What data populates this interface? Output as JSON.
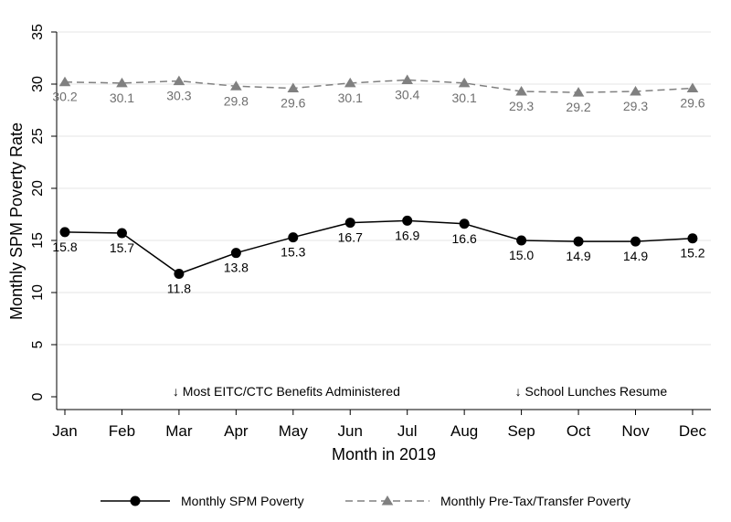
{
  "chart_data": {
    "type": "line",
    "xlabel": "Month in 2019",
    "ylabel": "Monthly SPM Poverty Rate",
    "categories": [
      "Jan",
      "Feb",
      "Mar",
      "Apr",
      "May",
      "Jun",
      "Jul",
      "Aug",
      "Sep",
      "Oct",
      "Nov",
      "Dec"
    ],
    "ylim": [
      0,
      35
    ],
    "yticks": [
      0,
      5,
      10,
      15,
      20,
      25,
      30,
      35
    ],
    "grid": "horizontal",
    "legend_position": "bottom",
    "series": [
      {
        "name": "Monthly SPM Poverty",
        "values": [
          15.8,
          15.7,
          11.8,
          13.8,
          15.3,
          16.7,
          16.9,
          16.6,
          15.0,
          14.9,
          14.9,
          15.2
        ],
        "labels": [
          "15.8",
          "15.7",
          "11.8",
          "13.8",
          "15.3",
          "16.7",
          "16.9",
          "16.6",
          "15.0",
          "14.9",
          "14.9",
          "15.2"
        ],
        "color": "#000000",
        "marker": "circle",
        "line_style": "solid"
      },
      {
        "name": "Monthly Pre-Tax/Transfer Poverty",
        "values": [
          30.2,
          30.1,
          30.3,
          29.8,
          29.6,
          30.1,
          30.4,
          30.1,
          29.3,
          29.2,
          29.3,
          29.6
        ],
        "labels": [
          "30.2",
          "30.1",
          "30.3",
          "29.8",
          "29.6",
          "30.1",
          "30.4",
          "30.1",
          "29.3",
          "29.2",
          "29.3",
          "29.6"
        ],
        "color": "#808080",
        "marker": "triangle",
        "line_style": "dashed"
      }
    ],
    "annotations": [
      {
        "text": "↓ Most EITC/CTC Benefits Administered",
        "x": "Mar"
      },
      {
        "text": "↓ School Lunches Resume",
        "x": "Sep"
      }
    ]
  }
}
